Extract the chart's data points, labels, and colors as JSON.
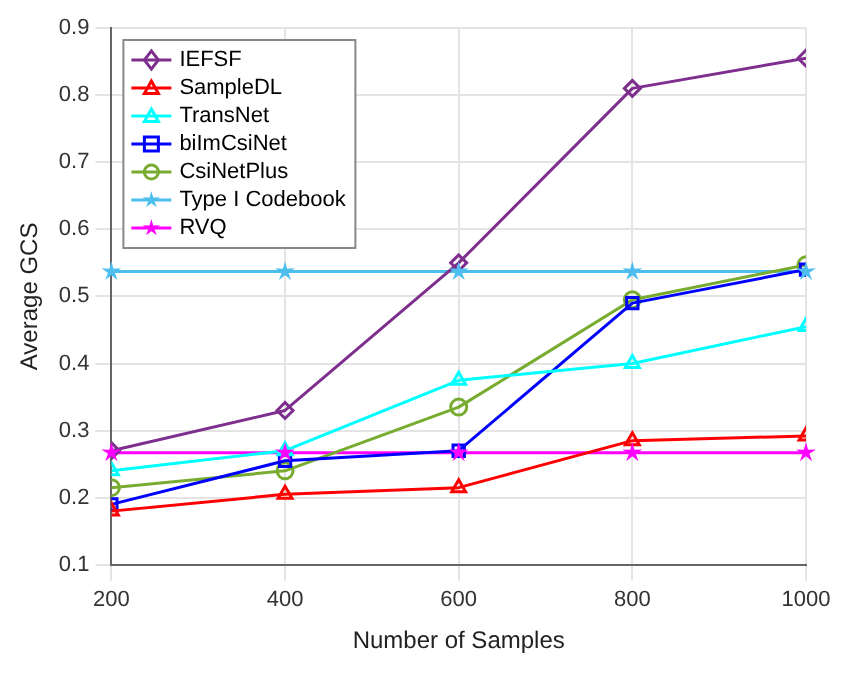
{
  "chart_data": {
    "type": "line",
    "xlabel": "Number of Samples",
    "ylabel": "Average GCS",
    "x": [
      200,
      400,
      600,
      800,
      1000
    ],
    "xlim": [
      200,
      1000
    ],
    "xticks": [
      200,
      400,
      600,
      800,
      1000
    ],
    "ylim": [
      0.1,
      0.9
    ],
    "yticks": [
      0.1,
      0.2,
      0.3,
      0.4,
      0.5,
      0.6,
      0.7,
      0.8,
      0.9
    ],
    "grid": true,
    "legend": "top left",
    "line_style": "solid",
    "series": [
      {
        "name": "IEFSF",
        "color": "#7e2f8e",
        "marker": "diamond",
        "values": [
          0.27,
          0.33,
          0.55,
          0.81,
          0.855
        ]
      },
      {
        "name": "SampleDL",
        "color": "#ff0000",
        "marker": "triangle",
        "values": [
          0.18,
          0.205,
          0.215,
          0.285,
          0.292
        ]
      },
      {
        "name": "TransNet",
        "color": "#00ffff",
        "marker": "triangle",
        "values": [
          0.24,
          0.27,
          0.375,
          0.4,
          0.455
        ]
      },
      {
        "name": "biImCsiNet",
        "color": "#0000ff",
        "marker": "square",
        "values": [
          0.19,
          0.255,
          0.27,
          0.49,
          0.54
        ]
      },
      {
        "name": "CsiNetPlus",
        "color": "#77ac30",
        "marker": "circle",
        "values": [
          0.215,
          0.24,
          0.335,
          0.495,
          0.547
        ]
      },
      {
        "name": "Type I Codebook",
        "color": "#4dbeee",
        "marker": "star",
        "values": [
          0.537,
          0.537,
          0.537,
          0.537,
          0.537
        ]
      },
      {
        "name": "RVQ",
        "color": "#ff00ff",
        "marker": "star",
        "values": [
          0.267,
          0.267,
          0.267,
          0.267,
          0.267
        ]
      }
    ]
  }
}
